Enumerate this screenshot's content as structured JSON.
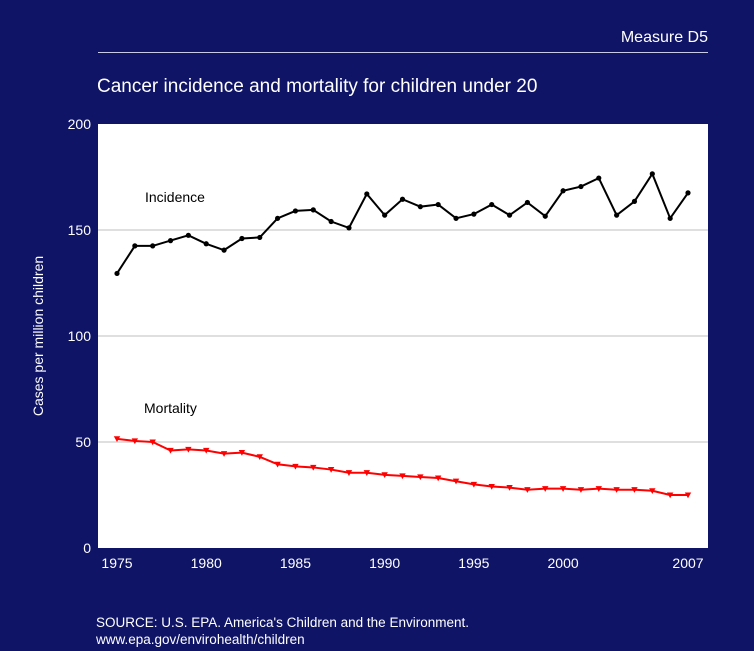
{
  "header": {
    "measure_label": "Measure D5"
  },
  "title": "Cancer incidence and mortality for children under 20",
  "source": {
    "line1": "SOURCE: U.S. EPA. America's Children and the Environment.",
    "line2": "www.epa.gov/envirohealth/children"
  },
  "colors": {
    "background": "#0f1466",
    "plot_bg": "#ffffff",
    "incidence": "#000000",
    "mortality": "#ff0000",
    "grid": "#bfbfbf"
  },
  "chart_data": {
    "type": "line",
    "title": "Cancer incidence and mortality for children under 20",
    "xlabel": "",
    "ylabel": "Cases per million children",
    "xlim": [
      1975,
      2007
    ],
    "ylim": [
      0,
      200
    ],
    "yticks": [
      0,
      50,
      100,
      150,
      200
    ],
    "xtick_labels": [
      "1975",
      "1980",
      "1985",
      "1990",
      "1995",
      "2000",
      "2007"
    ],
    "grid": "horizontal",
    "x": [
      1975,
      1976,
      1977,
      1978,
      1979,
      1980,
      1981,
      1982,
      1983,
      1984,
      1985,
      1986,
      1987,
      1988,
      1989,
      1990,
      1991,
      1992,
      1993,
      1994,
      1995,
      1996,
      1997,
      1998,
      1999,
      2000,
      2001,
      2002,
      2003,
      2004,
      2005,
      2006,
      2007
    ],
    "series": [
      {
        "name": "Incidence",
        "color": "#000000",
        "marker": "circle",
        "values": [
          129.5,
          142.5,
          142.5,
          145,
          147.5,
          143.5,
          140.5,
          146,
          146.5,
          155.5,
          159,
          159.5,
          154,
          151,
          167,
          157,
          164.5,
          161,
          162,
          155.5,
          157.5,
          162,
          157,
          163,
          156.5,
          168.5,
          170.5,
          174.5,
          157,
          163.5,
          176.5,
          155.5,
          167.5
        ]
      },
      {
        "name": "Mortality",
        "color": "#ff0000",
        "marker": "triangle-down",
        "values": [
          51.5,
          50.5,
          50,
          46,
          46.5,
          46,
          44.5,
          45,
          43,
          39.5,
          38.5,
          38,
          37,
          35.5,
          35.5,
          34.5,
          34,
          33.5,
          33,
          31.5,
          30,
          29,
          28.5,
          27.5,
          28,
          28,
          27.5,
          28,
          27.5,
          27.5,
          27,
          25,
          25
        ]
      }
    ]
  }
}
